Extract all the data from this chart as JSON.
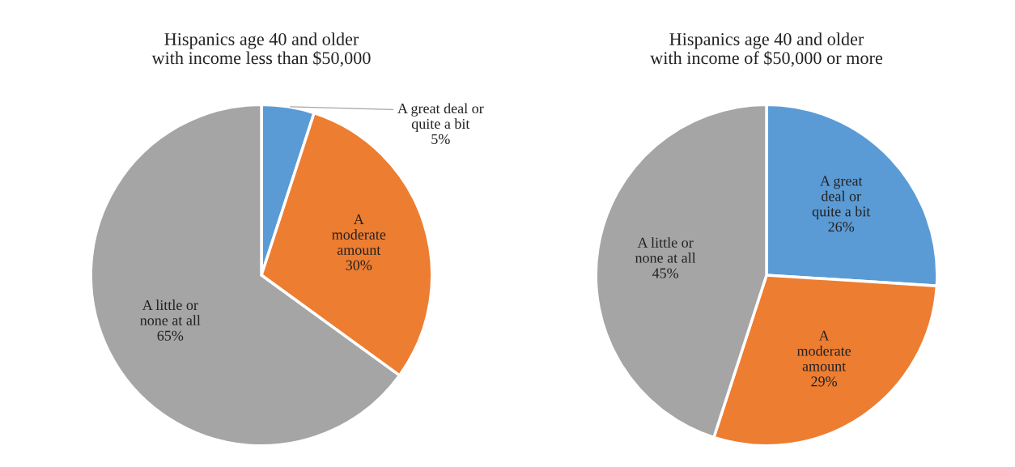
{
  "chart_data": [
    {
      "type": "pie",
      "title": "Hispanics age 40 and older\nwith income less than $50,000",
      "categories": [
        "A great deal or\nquite a bit",
        "A\nmoderate\namount",
        "A little or\nnone at all"
      ],
      "values": [
        5,
        30,
        65
      ],
      "value_labels": [
        "5%",
        "30%",
        "65%"
      ],
      "colors": [
        "#5b9bd5",
        "#ed7d31",
        "#a5a5a5"
      ]
    },
    {
      "type": "pie",
      "title": "Hispanics age 40 and older\nwith income of $50,000 or more",
      "categories": [
        "A great\ndeal or\nquite a bit",
        "A\nmoderate\namount",
        "A little or\nnone at all"
      ],
      "values": [
        26,
        29,
        45
      ],
      "value_labels": [
        "26%",
        "29%",
        "45%"
      ],
      "colors": [
        "#5b9bd5",
        "#ed7d31",
        "#a5a5a5"
      ]
    }
  ]
}
